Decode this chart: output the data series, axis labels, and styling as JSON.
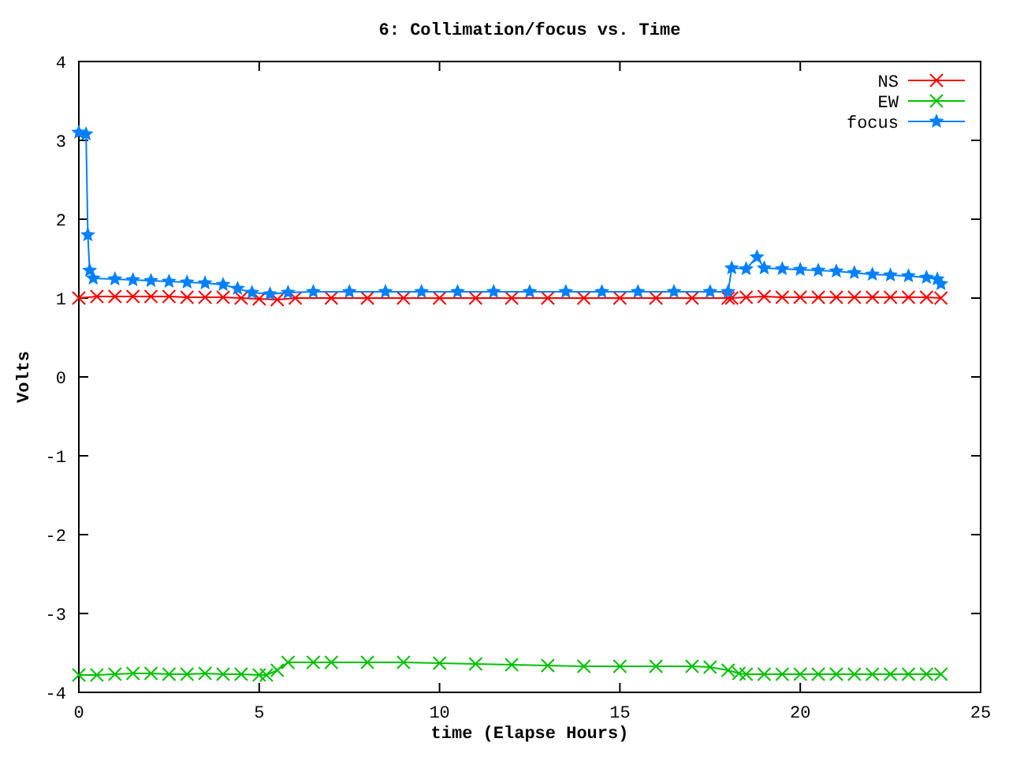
{
  "chart_data": {
    "type": "line",
    "title": "6: Collimation/focus vs. Time",
    "xlabel": "time (Elapse Hours)",
    "ylabel": "Volts",
    "xlim": [
      0,
      25
    ],
    "xticks": [
      0,
      5,
      10,
      15,
      20,
      25
    ],
    "ylim": [
      -4,
      4
    ],
    "yticks": [
      -4,
      -3,
      -2,
      -1,
      0,
      1,
      2,
      3,
      4
    ],
    "grid": false,
    "legend": "top right",
    "line_style": "solid",
    "series": [
      {
        "name": "NS",
        "color": "#ff0000",
        "marker": "cross",
        "x": [
          0,
          0.5,
          1,
          1.5,
          2,
          2.5,
          3,
          3.5,
          4,
          4.5,
          5,
          5.5,
          6,
          7,
          8,
          9,
          10,
          11,
          12,
          13,
          14,
          15,
          16,
          17,
          18,
          18.1,
          18.5,
          19,
          19.5,
          20,
          20.5,
          21,
          21.5,
          22,
          22.5,
          23,
          23.5,
          23.9
        ],
        "values": [
          1.0,
          1.02,
          1.02,
          1.02,
          1.02,
          1.02,
          1.01,
          1.01,
          1.01,
          1.0,
          0.99,
          0.98,
          1.0,
          1.0,
          1.0,
          1.0,
          1.0,
          1.0,
          1.0,
          1.0,
          1.0,
          1.0,
          1.0,
          1.0,
          1.0,
          1.0,
          1.01,
          1.02,
          1.01,
          1.01,
          1.01,
          1.01,
          1.01,
          1.01,
          1.01,
          1.01,
          1.01,
          1.0
        ]
      },
      {
        "name": "EW",
        "color": "#00c000",
        "marker": "cross",
        "x": [
          0,
          0.5,
          1,
          1.5,
          2,
          2.5,
          3,
          3.5,
          4,
          4.5,
          5,
          5.2,
          5.5,
          5.8,
          6.5,
          7,
          8,
          9,
          10,
          11,
          12,
          13,
          14,
          15,
          16,
          17,
          17.5,
          18,
          18.3,
          18.5,
          19,
          19.5,
          20,
          20.5,
          21,
          21.5,
          22,
          22.5,
          23,
          23.5,
          23.9
        ],
        "values": [
          -3.78,
          -3.78,
          -3.77,
          -3.76,
          -3.76,
          -3.77,
          -3.77,
          -3.76,
          -3.77,
          -3.77,
          -3.78,
          -3.78,
          -3.72,
          -3.62,
          -3.62,
          -3.62,
          -3.62,
          -3.62,
          -3.63,
          -3.64,
          -3.65,
          -3.66,
          -3.67,
          -3.67,
          -3.67,
          -3.67,
          -3.68,
          -3.72,
          -3.76,
          -3.77,
          -3.77,
          -3.77,
          -3.77,
          -3.77,
          -3.77,
          -3.77,
          -3.77,
          -3.77,
          -3.77,
          -3.77,
          -3.77
        ]
      },
      {
        "name": "focus",
        "color": "#0080ff",
        "marker": "star",
        "x": [
          0,
          0.2,
          0.25,
          0.3,
          0.4,
          1,
          1.5,
          2,
          2.5,
          3,
          3.5,
          4,
          4.4,
          4.8,
          5.3,
          5.8,
          6.5,
          7.5,
          8.5,
          9.5,
          10.5,
          11.5,
          12.5,
          13.5,
          14.5,
          15.5,
          16.5,
          17.5,
          18,
          18.1,
          18.5,
          18.8,
          19,
          19.5,
          20,
          20.5,
          21,
          21.5,
          22,
          22.5,
          23,
          23.5,
          23.8,
          23.9
        ],
        "values": [
          3.1,
          3.08,
          1.8,
          1.35,
          1.25,
          1.24,
          1.23,
          1.22,
          1.21,
          1.2,
          1.19,
          1.17,
          1.12,
          1.07,
          1.05,
          1.07,
          1.08,
          1.08,
          1.08,
          1.08,
          1.08,
          1.08,
          1.08,
          1.08,
          1.08,
          1.08,
          1.08,
          1.08,
          1.08,
          1.38,
          1.37,
          1.52,
          1.38,
          1.37,
          1.36,
          1.35,
          1.34,
          1.32,
          1.3,
          1.29,
          1.28,
          1.26,
          1.24,
          1.18
        ]
      }
    ]
  }
}
